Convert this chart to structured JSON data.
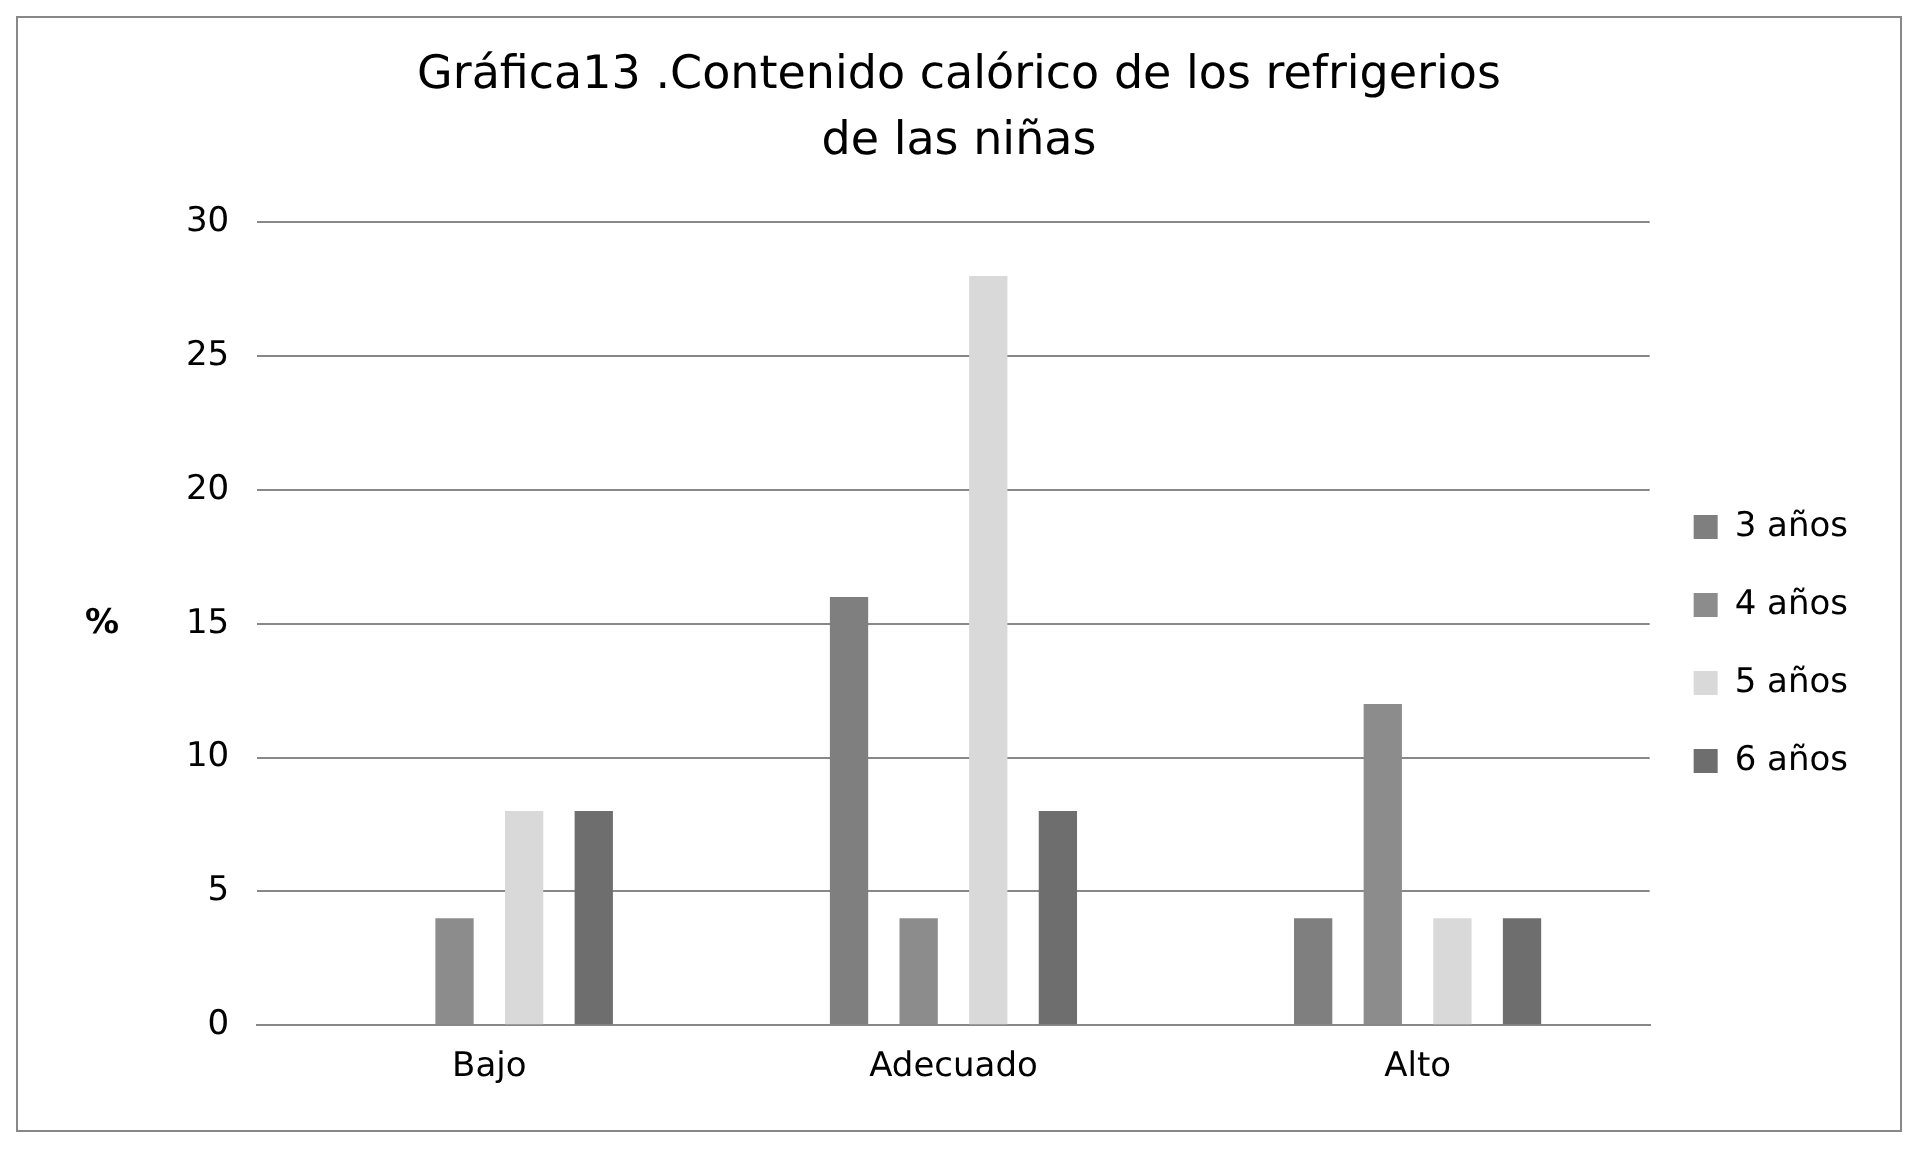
{
  "chart_data": {
    "type": "bar",
    "title": "Gráfica13 .Contenido calórico de los refrigerios de las niñas",
    "ylabel": "%",
    "categories": [
      "Bajo",
      "Adecuado",
      "Alto"
    ],
    "series": [
      {
        "name": "3 años",
        "color": "#7f7f7f",
        "values": [
          0,
          16,
          4
        ]
      },
      {
        "name": "4 años",
        "color": "#8c8c8c",
        "values": [
          4,
          4,
          12
        ]
      },
      {
        "name": "5 años",
        "color": "#d9d9d9",
        "values": [
          8,
          28,
          4
        ]
      },
      {
        "name": "6 años",
        "color": "#6e6e6e",
        "values": [
          8,
          8,
          4
        ]
      }
    ],
    "ylim": [
      0,
      30
    ],
    "yticks": [
      0,
      5,
      10,
      15,
      20,
      25,
      30
    ],
    "grid": "y",
    "legend": "right"
  }
}
